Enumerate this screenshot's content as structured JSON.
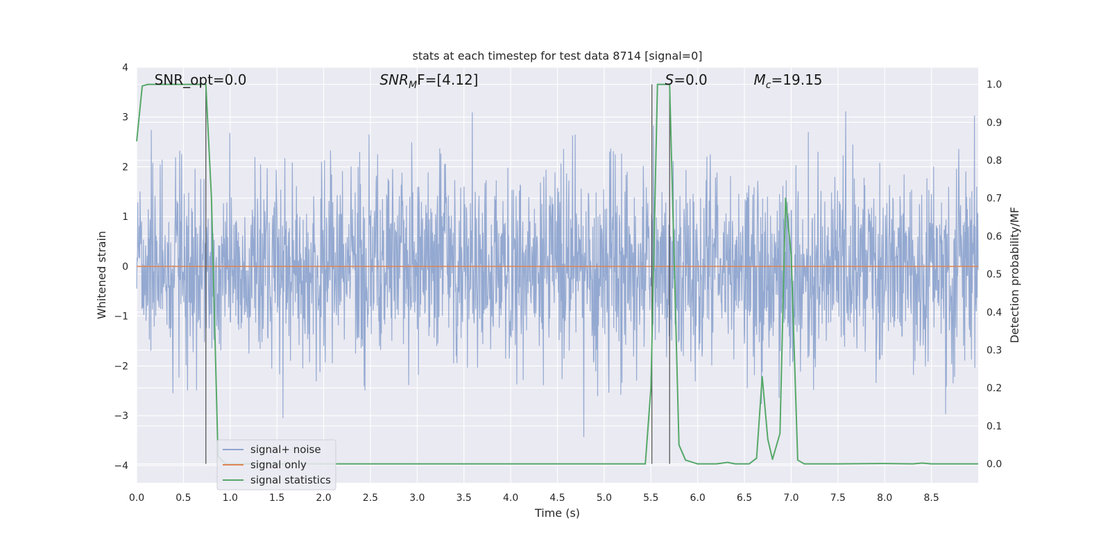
{
  "chart_data": {
    "type": "line",
    "title": "stats at each timestep for test data 8714 [signal=0]",
    "xlabel": "Time (s)",
    "ylabel": "Whitened strain",
    "y2label": "Detection probability/MF",
    "xlim": [
      0,
      9.0
    ],
    "ylim": [
      -4.35,
      4.0
    ],
    "y2lim": [
      -0.05,
      1.045
    ],
    "x_ticks": [
      "0.0",
      "0.5",
      "1.0",
      "1.5",
      "2.0",
      "2.5",
      "3.0",
      "3.5",
      "4.0",
      "4.5",
      "5.0",
      "5.5",
      "6.0",
      "6.5",
      "7.0",
      "7.5",
      "8.0",
      "8.5"
    ],
    "y_ticks": [
      "−4",
      "−3",
      "−2",
      "−1",
      "0",
      "1",
      "2",
      "3",
      "4"
    ],
    "y2_ticks": [
      "0.0",
      "0.1",
      "0.2",
      "0.3",
      "0.4",
      "0.5",
      "0.6",
      "0.7",
      "0.8",
      "0.9",
      "1.0"
    ],
    "grid": true,
    "legend_position": "lower-left",
    "annotations": [
      {
        "text": "SNR_opt=0.0",
        "x": 0.19,
        "y": 3.75
      },
      {
        "text": "SNR_MF=[4.12]",
        "main": "SNR",
        "sub": "M",
        "rest": "F=[4.12]",
        "x": 2.6,
        "y": 3.75
      },
      {
        "text": "S=0.0",
        "main": "S",
        "rest": "=0.0",
        "x": 5.65,
        "y": 3.75
      },
      {
        "text": "M_c=19.15",
        "main": "M",
        "sub": "c",
        "rest": "=19.15",
        "x": 6.6,
        "y": 3.75
      }
    ],
    "vlines": [
      0.74,
      5.51,
      5.7
    ],
    "series": [
      {
        "name": "signal+ noise",
        "color": "#8fa5cf",
        "axis": "left",
        "kind": "noise",
        "n_points": 2250,
        "std": 0.95,
        "seed": 8714
      },
      {
        "name": "signal only",
        "color": "#dd8452",
        "axis": "left",
        "kind": "constant",
        "value": 0.0
      },
      {
        "name": "signal statistics",
        "color": "#55a868",
        "axis": "right",
        "x": [
          0.0,
          0.06,
          0.12,
          0.2,
          0.4,
          0.6,
          0.7,
          0.74,
          0.8,
          0.87,
          0.95,
          1.2,
          2.0,
          3.0,
          4.0,
          5.0,
          5.44,
          5.5,
          5.57,
          5.6,
          5.7,
          5.8,
          5.87,
          6.0,
          6.2,
          6.32,
          6.4,
          6.55,
          6.63,
          6.69,
          6.75,
          6.8,
          6.88,
          6.94,
          7.0,
          7.07,
          7.14,
          7.5,
          8.0,
          8.3,
          8.4,
          8.5,
          9.0
        ],
        "y": [
          0.85,
          0.996,
          1.0,
          1.0,
          1.0,
          1.0,
          1.0,
          1.0,
          0.7,
          0.02,
          0.0,
          0.0,
          0.0,
          0.0,
          0.0,
          0.0,
          0.0,
          0.2,
          1.0,
          1.0,
          1.0,
          0.05,
          0.01,
          0.0,
          0.0,
          0.004,
          0.0,
          0.0,
          0.015,
          0.23,
          0.065,
          0.012,
          0.08,
          0.7,
          0.55,
          0.01,
          0.0,
          0.0,
          0.001,
          0.0,
          0.002,
          0.0,
          0.0
        ]
      }
    ]
  }
}
